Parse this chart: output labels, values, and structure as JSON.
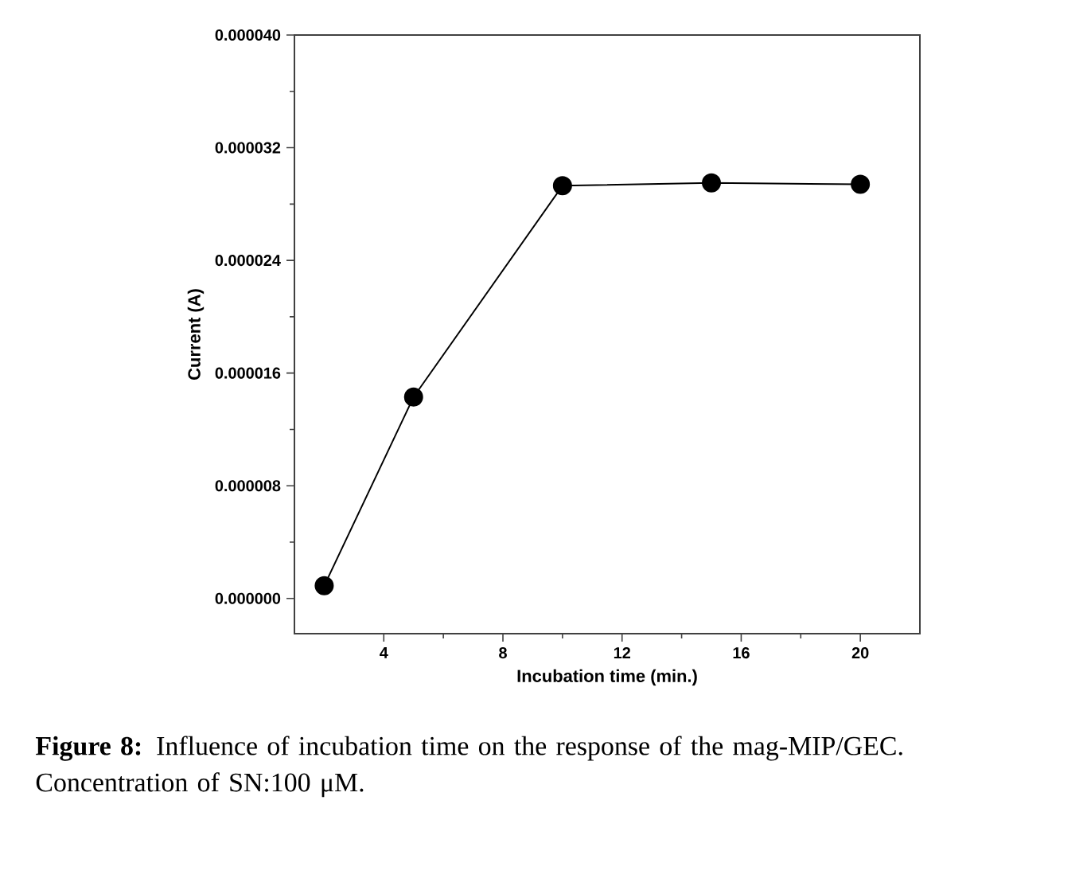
{
  "chart_data": {
    "type": "line",
    "x": [
      2,
      5,
      10,
      15,
      20
    ],
    "series": [
      {
        "color": "#000000",
        "values": [
          9e-07,
          1.43e-05,
          2.93e-05,
          2.95e-05,
          2.94e-05
        ]
      }
    ],
    "xlabel": "Incubation time (min.)",
    "ylabel": "Current (A)",
    "xlim": [
      1,
      22
    ],
    "ylim": [
      -2.5e-06,
      4e-05
    ],
    "xticks": [
      4,
      8,
      12,
      16,
      20
    ],
    "yticks": [
      {
        "value": 0,
        "label": "0.000000"
      },
      {
        "value": 8e-06,
        "label": "0.000008"
      },
      {
        "value": 1.6e-05,
        "label": "0.000016"
      },
      {
        "value": 2.4e-05,
        "label": "0.000024"
      },
      {
        "value": 3.2e-05,
        "label": "0.000032"
      },
      {
        "value": 4e-05,
        "label": "0.000040"
      }
    ],
    "marker": "circle",
    "line_style": "solid",
    "grid": false,
    "annotations": [
      "**Figure 8:** Influence of incubation time on the response of the mag-MIP/GEC. Concentration of SN:100 μM."
    ]
  }
}
